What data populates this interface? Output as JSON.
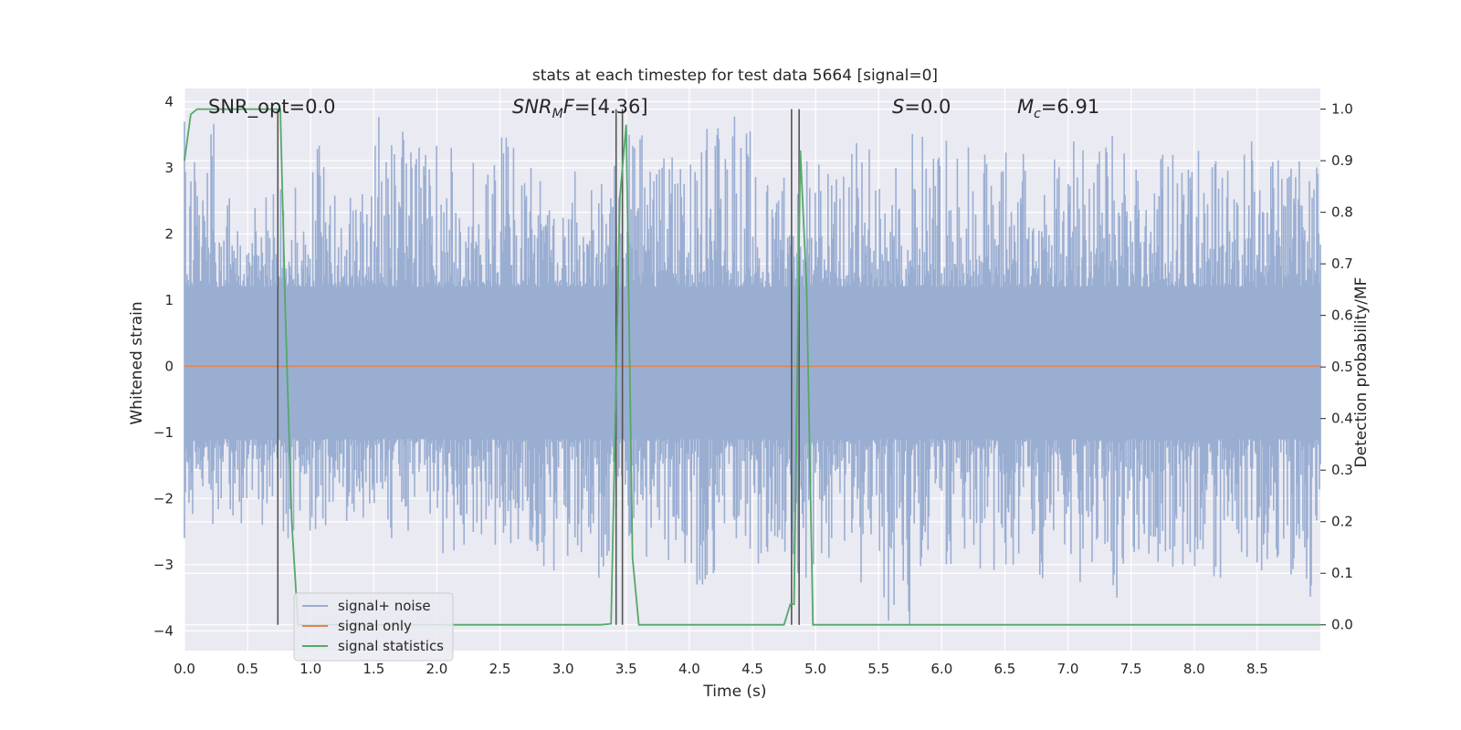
{
  "chart_data": {
    "type": "line",
    "title": "stats at each timestep for test data 5664 [signal=0]",
    "xlabel": "Time (s)",
    "ylabel": "Whitened strain",
    "y2label": "Detection probability/MF",
    "xlim": [
      0.0,
      9.0
    ],
    "ylim": [
      -4.3,
      4.2
    ],
    "y2lim": [
      -0.05,
      1.04
    ],
    "xticks": [
      "0.0",
      "0.5",
      "1.0",
      "1.5",
      "2.0",
      "2.5",
      "3.0",
      "3.5",
      "4.0",
      "4.5",
      "5.0",
      "5.5",
      "6.0",
      "6.5",
      "7.0",
      "7.5",
      "8.0",
      "8.5"
    ],
    "xtick_values": [
      0.0,
      0.5,
      1.0,
      1.5,
      2.0,
      2.5,
      3.0,
      3.5,
      4.0,
      4.5,
      5.0,
      5.5,
      6.0,
      6.5,
      7.0,
      7.5,
      8.0,
      8.5
    ],
    "yticks": [
      "−4",
      "−3",
      "−2",
      "−1",
      "0",
      "1",
      "2",
      "3",
      "4"
    ],
    "ytick_values": [
      -4,
      -3,
      -2,
      -1,
      0,
      1,
      2,
      3,
      4
    ],
    "y2ticks": [
      "0.0",
      "0.1",
      "0.2",
      "0.3",
      "0.4",
      "0.5",
      "0.6",
      "0.7",
      "0.8",
      "0.9",
      "1.0"
    ],
    "y2tick_values": [
      0.0,
      0.1,
      0.2,
      0.3,
      0.4,
      0.5,
      0.6,
      0.7,
      0.8,
      0.9,
      1.0
    ],
    "grid": true,
    "legend_position": "lower-left",
    "annotations": {
      "snr_opt": "SNR_opt=0.0",
      "snr_mf": "=[4.36]",
      "snr_mf_main": "SNR",
      "snr_mf_sub": "M",
      "snr_mf_tail": "F",
      "s_label": "S",
      "s_value": "=0.0",
      "mc_main": "M",
      "mc_sub": "c",
      "mc_value": "=6.91"
    },
    "series": [
      {
        "name": "signal+ noise",
        "color": "#9aaed2",
        "axis": "left",
        "description_range": [
          -3.9,
          3.9
        ],
        "envelope_upper": [
          3.7,
          2.6,
          2.6,
          2.8,
          3.4,
          2.6,
          3.9,
          3.4,
          3.3,
          3.1,
          3.5,
          2.8,
          3.0,
          3.2,
          3.5,
          3.3,
          3.6,
          3.8,
          2.9,
          3.1,
          3.3,
          3.4,
          3.0,
          3.6,
          3.5,
          3.2,
          3.4,
          3.3,
          3.4,
          3.5,
          3.3,
          3.2,
          3.3,
          3.4,
          3.2,
          3.3,
          3.3
        ],
        "envelope_lower": [
          -2.6,
          -2.4,
          -2.4,
          -2.6,
          -2.5,
          -2.4,
          -2.6,
          -2.7,
          -3.0,
          -2.7,
          -2.7,
          -3.1,
          -3.0,
          -3.2,
          -3.0,
          -3.1,
          -3.3,
          -2.8,
          -3.0,
          -3.2,
          -3.0,
          -3.3,
          -3.9,
          -3.4,
          -3.0,
          -3.1,
          -3.0,
          -3.3,
          -3.4,
          -3.5,
          -3.0,
          -3.1,
          -3.2,
          -3.0,
          -3.1,
          -3.5,
          -3.0
        ]
      },
      {
        "name": "signal only",
        "color": "#dd8452",
        "axis": "left",
        "x": [
          0.0,
          9.0
        ],
        "values": [
          0.0,
          0.0
        ]
      },
      {
        "name": "signal statistics",
        "color": "#55a868",
        "axis": "right",
        "x": [
          0.0,
          0.05,
          0.1,
          0.15,
          0.2,
          0.3,
          0.4,
          0.5,
          0.6,
          0.7,
          0.73,
          0.76,
          0.8,
          0.85,
          0.9,
          1.0,
          1.5,
          2.0,
          2.5,
          3.0,
          3.3,
          3.38,
          3.45,
          3.5,
          3.55,
          3.6,
          3.65,
          3.7,
          4.0,
          4.5,
          4.75,
          4.8,
          4.83,
          4.88,
          4.93,
          4.98,
          5.0,
          5.5,
          6.0,
          7.0,
          8.0,
          9.0
        ],
        "values": [
          0.9,
          0.99,
          1.0,
          1.0,
          1.0,
          1.0,
          1.0,
          1.0,
          1.0,
          1.0,
          1.0,
          1.0,
          0.6,
          0.2,
          0.0,
          0.0,
          0.0,
          0.0,
          0.0,
          0.0,
          0.0,
          0.002,
          0.83,
          0.97,
          0.13,
          0.0,
          0.0,
          0.0,
          0.0,
          0.0,
          0.0,
          0.04,
          0.04,
          0.92,
          0.65,
          0.0,
          0.0,
          0.0,
          0.0,
          0.0,
          0.0,
          0.0
        ]
      }
    ],
    "vertical_markers": [
      {
        "x": 0.74,
        "color": "#555555"
      },
      {
        "x": 3.42,
        "color": "#555555"
      },
      {
        "x": 3.47,
        "color": "#555555"
      },
      {
        "x": 4.81,
        "color": "#555555"
      },
      {
        "x": 4.87,
        "color": "#555555"
      }
    ],
    "legend": {
      "items": [
        "signal+ noise",
        "signal only",
        "signal statistics"
      ]
    }
  }
}
